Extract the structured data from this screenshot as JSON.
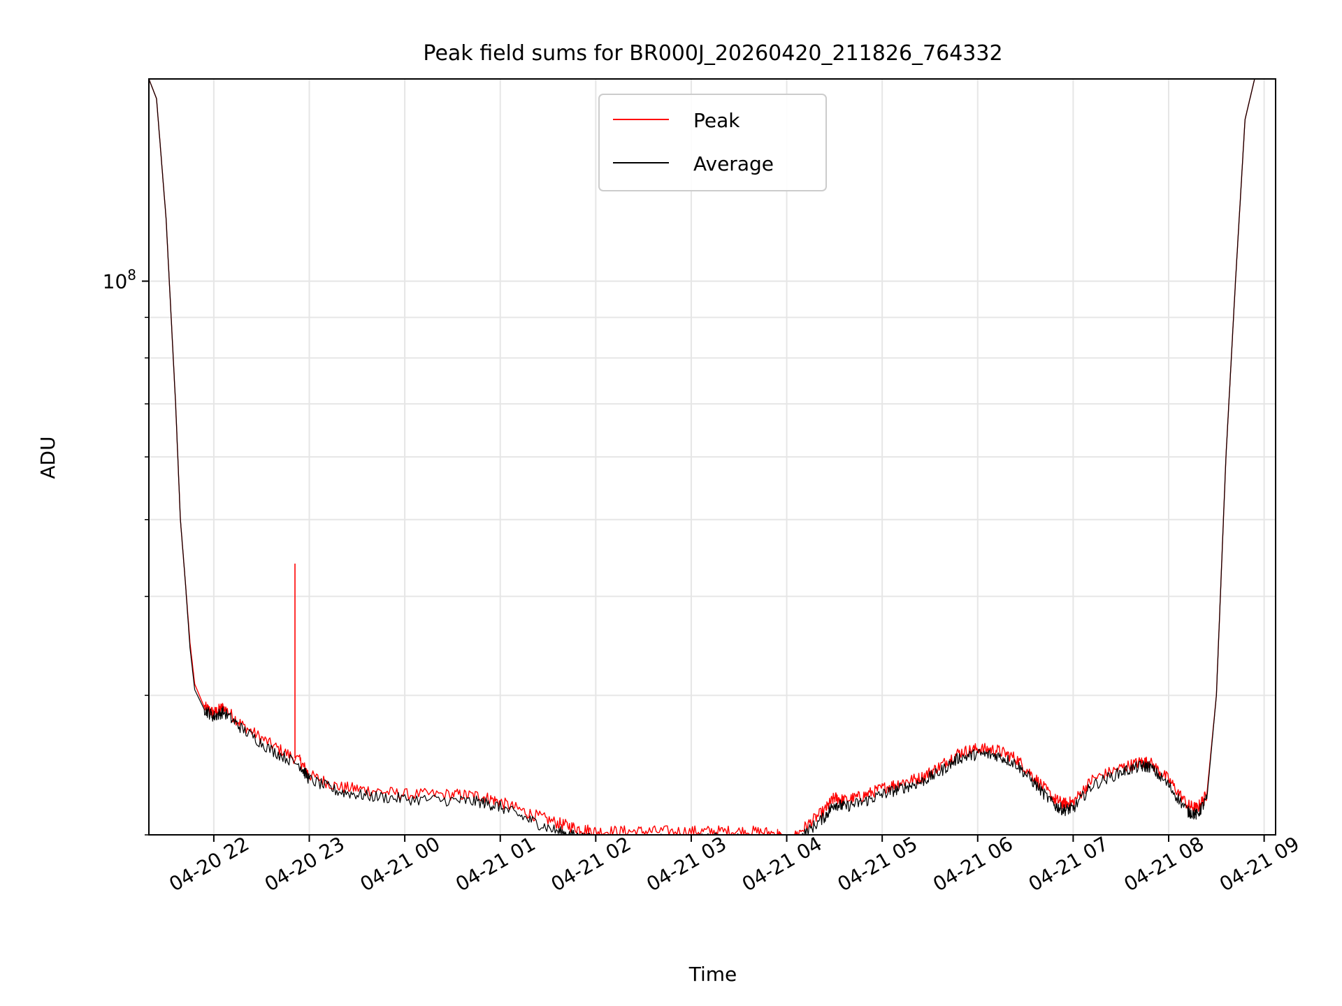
{
  "chart_data": {
    "type": "line",
    "title": "Peak field sums for BR000J_20260420_211826_764332",
    "xlabel": "Time",
    "ylabel": "ADU",
    "yscale": "log",
    "grid": true,
    "legend_position": "upper-center",
    "xlim_hours": [
      21.32,
      33.12
    ],
    "ylim": [
      20000000,
      180000000
    ],
    "x_ticks": [
      {
        "hour": 22,
        "label": "04-20 22"
      },
      {
        "hour": 23,
        "label": "04-20 23"
      },
      {
        "hour": 24,
        "label": "04-21 00"
      },
      {
        "hour": 25,
        "label": "04-21 01"
      },
      {
        "hour": 26,
        "label": "04-21 02"
      },
      {
        "hour": 27,
        "label": "04-21 03"
      },
      {
        "hour": 28,
        "label": "04-21 04"
      },
      {
        "hour": 29,
        "label": "04-21 05"
      },
      {
        "hour": 30,
        "label": "04-21 06"
      },
      {
        "hour": 31,
        "label": "04-21 07"
      },
      {
        "hour": 32,
        "label": "04-21 08"
      },
      {
        "hour": 33,
        "label": "04-21 09"
      }
    ],
    "y_major_ticks": [
      {
        "value": 100000000,
        "base": "10",
        "exp": "8"
      }
    ],
    "y_minor_ticks": [
      20000000,
      30000000,
      40000000,
      50000000,
      60000000,
      70000000,
      80000000,
      90000000,
      200000000
    ],
    "series": [
      {
        "name": "Peak",
        "color": "#ff0000",
        "x_hours": [
          21.32,
          21.4,
          21.5,
          21.6,
          21.65,
          21.7,
          21.75,
          21.8,
          21.9,
          22.0,
          22.1,
          22.3,
          22.6,
          22.9,
          23.0,
          23.3,
          23.6,
          24.0,
          24.5,
          24.8,
          25.0,
          25.3,
          25.6,
          25.8,
          26.0,
          26.3,
          26.6,
          27.0,
          27.3,
          27.6,
          27.9,
          28.0,
          28.2,
          28.4,
          28.5,
          28.6,
          28.8,
          29.0,
          29.2,
          29.4,
          29.6,
          29.8,
          30.0,
          30.2,
          30.4,
          30.6,
          30.8,
          30.9,
          31.0,
          31.2,
          31.5,
          31.7,
          31.8,
          32.0,
          32.2,
          32.3,
          32.4,
          32.5,
          32.6,
          32.7,
          32.8,
          32.9,
          33.12
        ],
        "values": [
          180000000,
          170000000,
          120000000,
          70000000,
          50000000,
          42000000,
          35000000,
          31000000,
          29000000,
          28500000,
          29000000,
          27500000,
          26000000,
          24800000,
          23800000,
          23000000,
          22800000,
          22500000,
          22500000,
          22400000,
          22000000,
          21300000,
          20700000,
          20400000,
          20200000,
          20200000,
          20200000,
          20200000,
          20200000,
          20200000,
          20100000,
          19500000,
          20500000,
          21500000,
          22300000,
          22100000,
          22400000,
          22900000,
          23300000,
          23600000,
          24400000,
          25400000,
          25700000,
          25600000,
          25000000,
          23600000,
          22200000,
          21900000,
          22000000,
          23500000,
          24300000,
          24700000,
          24700000,
          23500000,
          21800000,
          21600000,
          22500000,
          30000000,
          60000000,
          100000000,
          160000000,
          180000000,
          180000000
        ],
        "annotations": [
          {
            "hour": 22.85,
            "value": 44000000,
            "note": "spike"
          }
        ]
      },
      {
        "name": "Average",
        "color": "#000000",
        "x_hours": [
          21.32,
          21.4,
          21.5,
          21.6,
          21.65,
          21.7,
          21.75,
          21.8,
          21.9,
          22.0,
          22.1,
          22.3,
          22.6,
          22.9,
          23.0,
          23.3,
          23.6,
          24.0,
          24.5,
          24.8,
          25.0,
          25.3,
          25.6,
          25.8,
          26.0,
          26.3,
          26.6,
          27.0,
          27.3,
          27.6,
          27.9,
          28.0,
          28.2,
          28.4,
          28.5,
          28.6,
          28.8,
          29.0,
          29.2,
          29.4,
          29.6,
          29.8,
          30.0,
          30.2,
          30.4,
          30.6,
          30.8,
          30.9,
          31.0,
          31.2,
          31.5,
          31.7,
          31.8,
          32.0,
          32.2,
          32.3,
          32.4,
          32.5,
          32.6,
          32.7,
          32.8,
          32.9,
          33.12
        ],
        "values": [
          180000000,
          170000000,
          120000000,
          70000000,
          50000000,
          42000000,
          34500000,
          30500000,
          28800000,
          28200000,
          28600000,
          27200000,
          25600000,
          24500000,
          23500000,
          22700000,
          22400000,
          22200000,
          22100000,
          22000000,
          21700000,
          20900000,
          20200000,
          19900000,
          19700000,
          19700000,
          19700000,
          19700000,
          19800000,
          19700000,
          19600000,
          19100000,
          20100000,
          21100000,
          21900000,
          21700000,
          22000000,
          22500000,
          22900000,
          23300000,
          24000000,
          25000000,
          25300000,
          25200000,
          24600000,
          23200000,
          21800000,
          21500000,
          21600000,
          23100000,
          24000000,
          24400000,
          24400000,
          23100000,
          21400000,
          21200000,
          22200000,
          30000000,
          60000000,
          100000000,
          160000000,
          180000000,
          180000000
        ]
      }
    ]
  }
}
